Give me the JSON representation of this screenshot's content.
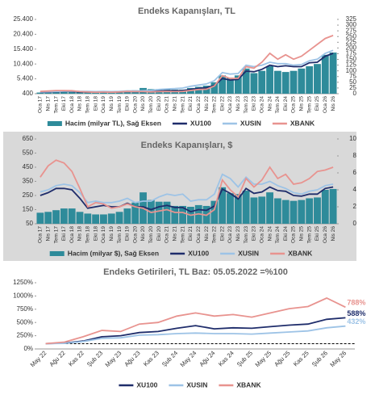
{
  "chart_data": [
    {
      "type": "line",
      "title": "Endeks Kapanışları, TL",
      "categories": [
        "Oca 17",
        "Nis 17",
        "Tem 17",
        "Eki 17",
        "Oca 18",
        "Nis 18",
        "Tem 18",
        "Eki 18",
        "Oca 19",
        "Nis 19",
        "Tem 19",
        "Eki 19",
        "Oca 20",
        "Nis 20",
        "Tem 20",
        "Eki 20",
        "Oca 21",
        "Nis 21",
        "Tem 21",
        "Eki 21",
        "Oca 22",
        "Nis 22",
        "Tem 22",
        "Eki 22",
        "Oca 23",
        "Nis 23",
        "Tem 23",
        "Eki 23",
        "Oca 24",
        "Nis 24",
        "Tem 24",
        "Eki 24",
        "Oca 25",
        "Nis 25",
        "Tem 25",
        "Eki 25",
        "Oca 26",
        "Nis 26"
      ],
      "ylim": [
        400,
        25400
      ],
      "yticks": [
        400,
        {
          "value": 5400,
          "label": "5.400"
        },
        {
          "value": 10400,
          "label": "10.400"
        },
        {
          "value": 15400,
          "label": "15.400"
        },
        {
          "value": 20400,
          "label": "20.400"
        },
        {
          "value": 25400,
          "label": "25.400"
        }
      ],
      "y2lim": [
        0,
        325
      ],
      "y2ticks": [
        0,
        25,
        50,
        75,
        100,
        125,
        150,
        175,
        200,
        225,
        250,
        275,
        300,
        325
      ],
      "series": [
        {
          "name": "Hacim (milyar TL), Sağ Eksen",
          "type": "bar",
          "axis": "y2",
          "color": "#2e8b9a",
          "values": [
            5,
            5,
            6,
            7,
            7,
            6,
            7,
            6,
            6,
            7,
            8,
            10,
            15,
            25,
            20,
            20,
            20,
            18,
            18,
            25,
            30,
            35,
            50,
            80,
            70,
            80,
            110,
            90,
            100,
            120,
            100,
            95,
            100,
            110,
            120,
            130,
            170,
            180
          ]
        },
        {
          "name": "XU100",
          "type": "line",
          "color": "#1f2d6b",
          "values": [
            900,
            950,
            1050,
            1150,
            1150,
            1000,
            980,
            910,
            1000,
            950,
            1000,
            1140,
            1100,
            1150,
            1100,
            1300,
            1400,
            1400,
            1450,
            1850,
            2200,
            2400,
            3200,
            5500,
            5000,
            5200,
            8000,
            7800,
            8600,
            10000,
            9500,
            9800,
            9500,
            9500,
            10800,
            11000,
            13000,
            14000
          ]
        },
        {
          "name": "XUSIN",
          "type": "line",
          "color": "#9dc3e6",
          "values": [
            1000,
            1050,
            1150,
            1250,
            1300,
            1200,
            1150,
            1100,
            1150,
            1100,
            1200,
            1350,
            1300,
            1400,
            1500,
            1800,
            2000,
            2100,
            2300,
            2900,
            3300,
            3700,
            4800,
            7500,
            7000,
            7200,
            10000,
            9500,
            10000,
            11000,
            10500,
            10500,
            10000,
            10200,
            11500,
            12000,
            14000,
            15000
          ]
        },
        {
          "name": "XBANK",
          "type": "line",
          "color": "#e8938f",
          "values": [
            1200,
            1300,
            1450,
            1450,
            1400,
            1100,
            1000,
            900,
            950,
            900,
            1000,
            1150,
            1100,
            1100,
            1000,
            1100,
            1150,
            1100,
            1150,
            1500,
            1800,
            1900,
            3000,
            6500,
            5500,
            5600,
            9500,
            9000,
            11000,
            14000,
            12000,
            13500,
            12000,
            13000,
            15000,
            17000,
            19000,
            20000
          ]
        }
      ]
    },
    {
      "type": "line",
      "title": "Endeks Kapanışları, $",
      "categories": [
        "Oca 17",
        "Nis 17",
        "Tem 17",
        "Eki 17",
        "Oca 18",
        "Nis 18",
        "Tem 18",
        "Eki 18",
        "Oca 19",
        "Nis 19",
        "Tem 19",
        "Eki 19",
        "Oca 20",
        "Nis 20",
        "Tem 20",
        "Eki 20",
        "Oca 21",
        "Nis 21",
        "Tem 21",
        "Eki 21",
        "Oca 22",
        "Nis 22",
        "Tem 22",
        "Eki 22",
        "Oca 23",
        "Nis 23",
        "Tem 23",
        "Eki 23",
        "Oca 24",
        "Nis 24",
        "Tem 24",
        "Eki 24",
        "Oca 25",
        "Nis 25",
        "Tem 25",
        "Eki 25",
        "Oca 26",
        "Nis 26"
      ],
      "ylim": [
        50,
        650
      ],
      "yticks": [
        50,
        150,
        250,
        350,
        450,
        550,
        650
      ],
      "y2lim": [
        0,
        10
      ],
      "y2ticks": [
        0,
        2,
        4,
        6,
        8,
        10
      ],
      "series": [
        {
          "name": "Hacim (milyar $), Sağ Eksen",
          "type": "bar",
          "axis": "y2",
          "color": "#2e8b9a",
          "values": [
            1.3,
            1.4,
            1.6,
            1.8,
            1.8,
            1.4,
            1.2,
            1.1,
            1.1,
            1.2,
            1.4,
            1.8,
            2.5,
            3.7,
            2.8,
            2.6,
            2.6,
            2.1,
            2.1,
            2.0,
            2.2,
            2.1,
            2.7,
            4.3,
            3.6,
            3.5,
            3.9,
            3.1,
            3.2,
            3.7,
            3.0,
            2.8,
            2.7,
            2.8,
            3.0,
            3.1,
            4.0,
            4.1
          ]
        },
        {
          "name": "XU100",
          "type": "line",
          "color": "#1f2d6b",
          "values": [
            250,
            270,
            300,
            300,
            290,
            230,
            160,
            170,
            180,
            170,
            170,
            195,
            170,
            170,
            150,
            170,
            180,
            165,
            165,
            135,
            150,
            145,
            175,
            295,
            265,
            225,
            300,
            265,
            275,
            310,
            285,
            280,
            250,
            245,
            260,
            260,
            300,
            310
          ]
        },
        {
          "name": "XUSIN",
          "type": "line",
          "color": "#9dc3e6",
          "values": [
            275,
            290,
            320,
            330,
            320,
            270,
            200,
            210,
            200,
            200,
            210,
            230,
            200,
            210,
            210,
            240,
            260,
            250,
            260,
            210,
            220,
            220,
            260,
            400,
            370,
            310,
            380,
            330,
            330,
            350,
            320,
            300,
            270,
            260,
            280,
            290,
            320,
            330
          ]
        },
        {
          "name": "XBANK",
          "type": "line",
          "color": "#e8938f",
          "values": [
            380,
            460,
            500,
            480,
            420,
            300,
            170,
            200,
            190,
            160,
            170,
            190,
            170,
            160,
            130,
            140,
            150,
            130,
            130,
            110,
            120,
            110,
            150,
            360,
            290,
            240,
            370,
            310,
            360,
            450,
            370,
            400,
            330,
            340,
            370,
            420,
            430,
            450
          ]
        }
      ]
    },
    {
      "type": "line",
      "title": "Endeks Getirileri, TL Baz: 05.05.2022 =%100",
      "categories": [
        "May 22",
        "Ağu 22",
        "Kas 22",
        "Şub 23",
        "May 23",
        "Ağu 23",
        "Kas 23",
        "Şub 24",
        "May 24",
        "Ağu 24",
        "Kas 24",
        "Şub 25",
        "May 25",
        "Ağu 25",
        "Kas 25",
        "Şub 26",
        "May 26"
      ],
      "ylim": [
        0,
        1250
      ],
      "yticks": [
        {
          "value": 0,
          "label": "0%"
        },
        {
          "value": 250,
          "label": "250%"
        },
        {
          "value": 500,
          "label": "500%"
        },
        {
          "value": 750,
          "label": "750%"
        },
        {
          "value": 1000,
          "label": "1000%"
        },
        {
          "value": 1250,
          "label": "1250%"
        }
      ],
      "baseline": 100,
      "series": [
        {
          "name": "XU100",
          "type": "line",
          "color": "#1f2d6b",
          "values": [
            100,
            110,
            150,
            230,
            250,
            310,
            330,
            390,
            440,
            380,
            400,
            390,
            420,
            450,
            470,
            560,
            588
          ],
          "value_labels": [
            null,
            null,
            null,
            null,
            null,
            null,
            null,
            null,
            null,
            null,
            null,
            null,
            null,
            null,
            null,
            null,
            "588%"
          ]
        },
        {
          "name": "XUSIN",
          "type": "line",
          "color": "#9dc3e6",
          "values": [
            100,
            105,
            140,
            200,
            210,
            260,
            270,
            290,
            300,
            290,
            290,
            280,
            300,
            320,
            340,
            400,
            432
          ],
          "value_labels": [
            null,
            null,
            null,
            null,
            null,
            null,
            null,
            null,
            null,
            null,
            null,
            null,
            null,
            null,
            null,
            null,
            "432%"
          ]
        },
        {
          "name": "XBANK",
          "type": "line",
          "color": "#e8938f",
          "values": [
            100,
            130,
            230,
            350,
            330,
            470,
            500,
            620,
            680,
            620,
            650,
            600,
            680,
            760,
            800,
            960,
            788
          ],
          "value_labels": [
            null,
            null,
            null,
            null,
            null,
            null,
            null,
            null,
            null,
            null,
            null,
            null,
            null,
            null,
            null,
            null,
            "788%"
          ]
        }
      ]
    }
  ]
}
